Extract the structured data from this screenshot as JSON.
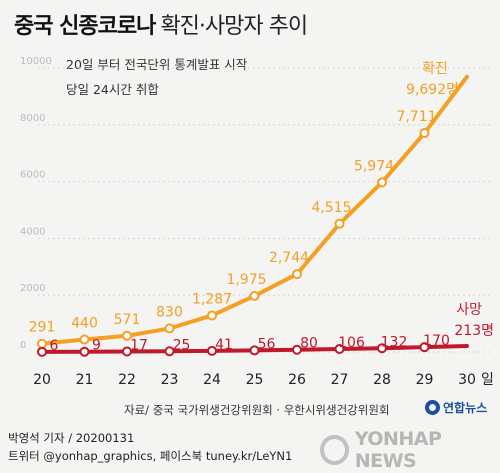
{
  "title": {
    "bold": "중국 신종코로나",
    "rest": "확진·사망자 추이"
  },
  "notes": [
    "20일 부터 전국단위 통계발표 시작",
    "당일 24시간 취합"
  ],
  "colors": {
    "confirmed": "#f4a024",
    "deaths": "#c0192c",
    "grid": "#cfcfcf",
    "axis_text": "#bbbbbb"
  },
  "chart_data": {
    "type": "line",
    "x": [
      "20",
      "21",
      "22",
      "23",
      "24",
      "25",
      "26",
      "27",
      "28",
      "29",
      "30"
    ],
    "x_unit": "일",
    "ylim": [
      0,
      10000
    ],
    "y_ticks": [
      "0",
      "2000",
      "4000",
      "6000",
      "8000",
      "10000"
    ],
    "grid": true,
    "series": [
      {
        "name": "확진",
        "value_labels": [
          "291",
          "440",
          "571",
          "830",
          "1,287",
          "1,975",
          "2,744",
          "4,515",
          "5,974",
          "7,711",
          "9,692명"
        ],
        "values": [
          291,
          440,
          571,
          830,
          1287,
          1975,
          2744,
          4515,
          5974,
          7711,
          9692
        ]
      },
      {
        "name": "사망",
        "value_labels": [
          "6",
          "9",
          "17",
          "25",
          "41",
          "56",
          "80",
          "106",
          "132",
          "170",
          "213명"
        ],
        "values": [
          6,
          9,
          17,
          25,
          41,
          56,
          80,
          106,
          132,
          170,
          213
        ]
      }
    ]
  },
  "source": "자료/ 중국 국가위생건강위원회 · 우한시위생건강위원회",
  "logo": "연합뉴스",
  "byline": "박영석 기자 /  20200131",
  "sns": "트위터 @yonhap_graphics, 페이스북 tuney.kr/LeYN1",
  "watermark": "YONHAP NEWS"
}
